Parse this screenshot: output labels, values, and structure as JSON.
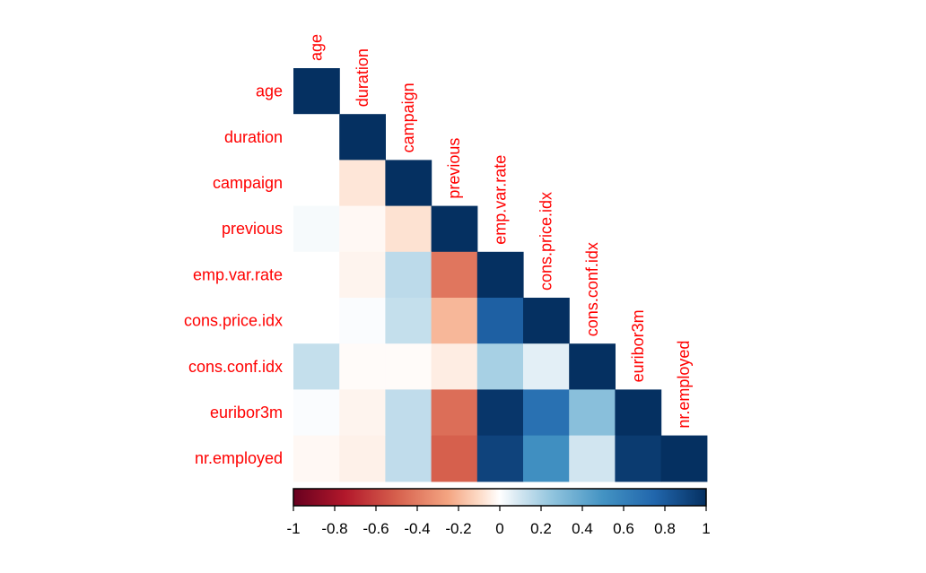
{
  "chart_data": {
    "type": "heatmap",
    "subtype": "correlation-matrix-lower",
    "title": "",
    "variables": [
      "age",
      "duration",
      "campaign",
      "previous",
      "emp.var.rate",
      "cons.price.idx",
      "cons.conf.idx",
      "euribor3m",
      "nr.employed"
    ],
    "matrix": [
      [
        1.0,
        null,
        null,
        null,
        null,
        null,
        null,
        null,
        null
      ],
      [
        0.0,
        1.0,
        null,
        null,
        null,
        null,
        null,
        null,
        null
      ],
      [
        0.0,
        -0.07,
        1.0,
        null,
        null,
        null,
        null,
        null,
        null
      ],
      [
        0.02,
        -0.02,
        -0.08,
        1.0,
        null,
        null,
        null,
        null,
        null
      ],
      [
        0.0,
        -0.03,
        0.15,
        -0.42,
        1.0,
        null,
        null,
        null,
        null
      ],
      [
        0.0,
        0.01,
        0.13,
        -0.2,
        0.78,
        1.0,
        null,
        null,
        null
      ],
      [
        0.13,
        -0.01,
        -0.01,
        -0.05,
        0.2,
        0.06,
        1.0,
        null,
        null
      ],
      [
        0.01,
        -0.03,
        0.14,
        -0.45,
        0.97,
        0.69,
        0.28,
        1.0,
        null
      ],
      [
        -0.02,
        -0.04,
        0.14,
        -0.5,
        0.91,
        0.52,
        0.1,
        0.95,
        1.0
      ]
    ],
    "colorbar": {
      "min": -1,
      "max": 1,
      "ticks": [
        "-1",
        "-0.8",
        "-0.6",
        "-0.4",
        "-0.2",
        "0",
        "0.2",
        "0.4",
        "0.6",
        "0.8",
        "1"
      ]
    },
    "colors": {
      "neg_dark": "#67001f",
      "neg_mid": "#d6604d",
      "neg_light": "#fddbc7",
      "zero": "#ffffff",
      "pos_light": "#d1e5f0",
      "pos_mid": "#4393c3",
      "pos_dark": "#053061",
      "label": "#ff0000"
    }
  }
}
